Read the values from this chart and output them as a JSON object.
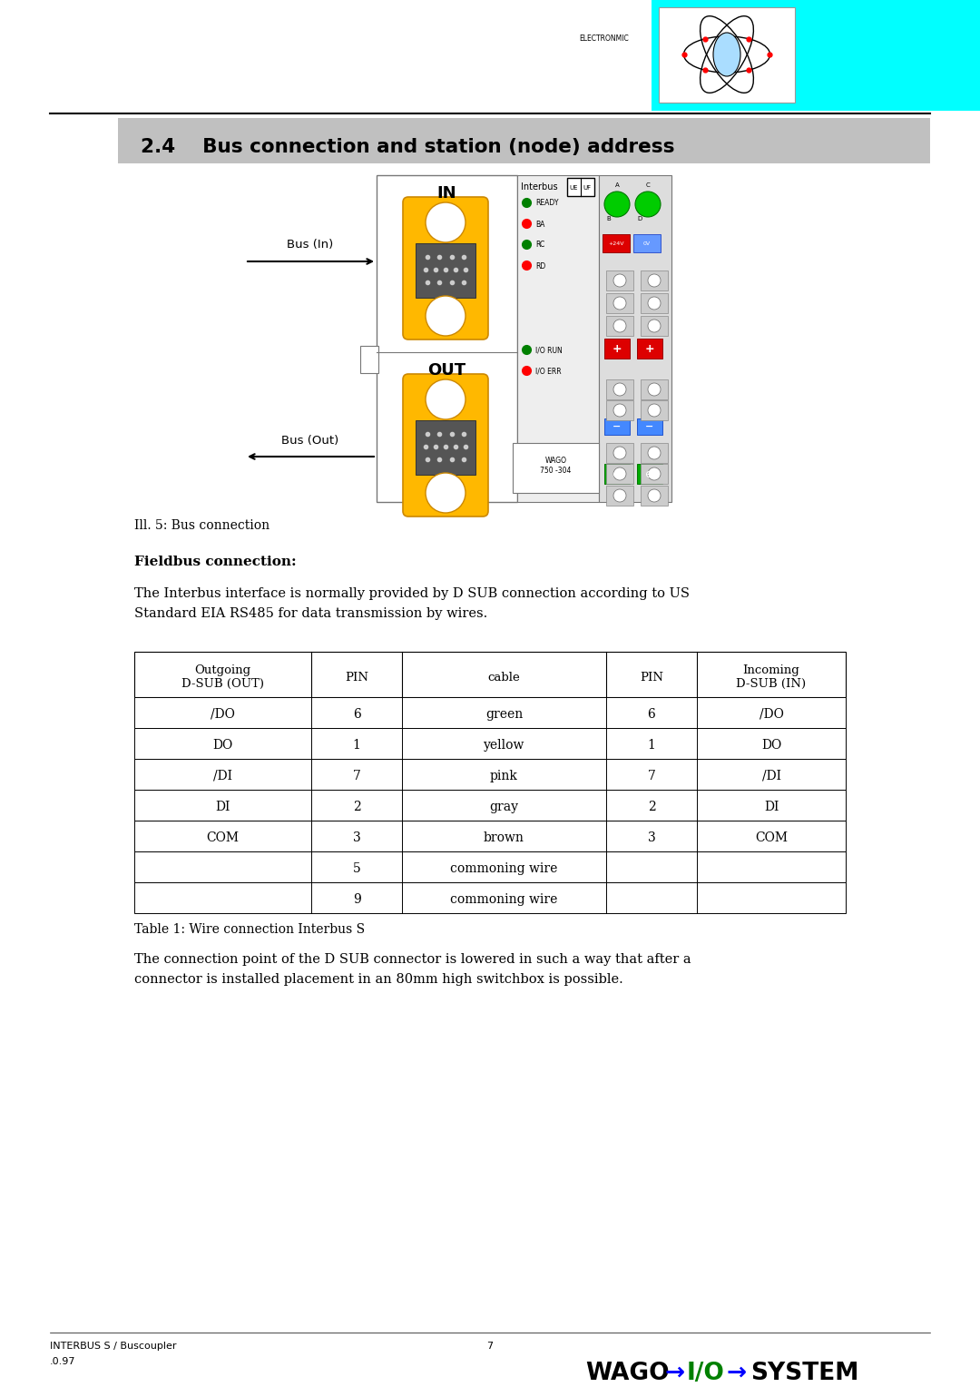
{
  "title": "2.4    Bus connection and station (node) address",
  "header_bg": "#c0c0c0",
  "page_bg": "#ffffff",
  "ill_caption": "Ill. 5: Bus connection",
  "fieldbus_title": "Fieldbus connection:",
  "fieldbus_body1": "The Interbus interface is normally provided by D SUB connection according to US",
  "fieldbus_body2": "Standard EIA RS485 for data transmission by wires.",
  "table_caption": "Table 1: Wire connection Interbus S",
  "closing_text1": "The connection point of the D SUB connector is lowered in such a way that after a",
  "closing_text2": "connector is installed placement in an 80mm high switchbox is possible.",
  "footer_left1": "INTERBUS S / Buscoupler",
  "footer_left2": ".0.97",
  "footer_center": "7",
  "table_headers": [
    "Outgoing\nD-SUB (OUT)",
    "PIN",
    "cable",
    "PIN",
    "Incoming\nD-SUB (IN)"
  ],
  "table_rows": [
    [
      "/DO",
      "6",
      "green",
      "6",
      "/DO"
    ],
    [
      "DO",
      "1",
      "yellow",
      "1",
      "DO"
    ],
    [
      "/DI",
      "7",
      "pink",
      "7",
      "/DI"
    ],
    [
      "DI",
      "2",
      "gray",
      "2",
      "DI"
    ],
    [
      "COM",
      "3",
      "brown",
      "3",
      "COM"
    ],
    [
      "",
      "5",
      "commoning wire",
      "",
      ""
    ],
    [
      "",
      "9",
      "commoning wire",
      "",
      ""
    ]
  ],
  "cyan_color": "#00ffff",
  "bus_in_label": "Bus (In)",
  "bus_out_label": "Bus (Out)",
  "electronmic_text": "ELECTRONMIC",
  "wago_label": "WAGO\n750 -304"
}
